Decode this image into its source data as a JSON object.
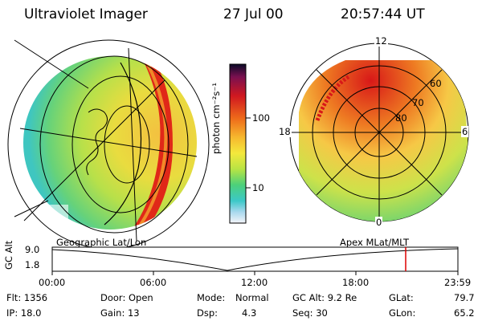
{
  "header": {
    "instrument": "Ultraviolet Imager",
    "date": "27 Jul 00",
    "time": "20:57:44 UT"
  },
  "colorbar": {
    "label": "photon cm⁻²s⁻¹",
    "ticks": [
      "100",
      "10"
    ]
  },
  "polar_plot": {
    "top_label": "12",
    "left_label": "18",
    "right_label": "6",
    "bottom_label": "0",
    "lat_labels": [
      "60",
      "70",
      "80"
    ]
  },
  "left_panel_label": "Geographic Lat/Lon",
  "right_panel_label": "Apex MLat/MLT",
  "alt_track": {
    "ylabel": "GC Alt",
    "y_ticks": [
      "9.0",
      "1.8"
    ],
    "x_ticks": [
      "00:00",
      "06:00",
      "12:00",
      "18:00",
      "23:59"
    ]
  },
  "info": {
    "row1": {
      "flt": "Flt: 1356",
      "door": "Door: Open",
      "mode_label": "Mode:",
      "mode_value": "Normal",
      "gcalt": "GC Alt: 9.2 Re",
      "glat_label": "GLat:",
      "glat_value": "79.7"
    },
    "row2": {
      "ip": "IP: 18.0",
      "gain": "Gain: 13",
      "dsp_label": "Dsp:",
      "dsp_value": "4.3",
      "seq": "Seq: 30",
      "glon_label": "GLon:",
      "glon_value": "65.2"
    }
  },
  "colors": {
    "track_marker": "#dd0000"
  }
}
